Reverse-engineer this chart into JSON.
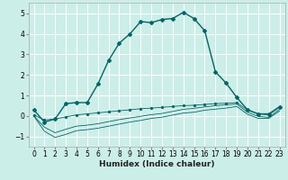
{
  "xlabel": "Humidex (Indice chaleur)",
  "bg_color": "#cceee8",
  "grid_color": "#ffffff",
  "line_color": "#006666",
  "xlim": [
    -0.5,
    23.5
  ],
  "ylim": [
    -1.5,
    5.5
  ],
  "xticks": [
    0,
    1,
    2,
    3,
    4,
    5,
    6,
    7,
    8,
    9,
    10,
    11,
    12,
    13,
    14,
    15,
    16,
    17,
    18,
    19,
    20,
    21,
    22,
    23
  ],
  "yticks": [
    -1,
    0,
    1,
    2,
    3,
    4,
    5
  ],
  "main_line_x": [
    0,
    1,
    2,
    3,
    4,
    5,
    6,
    7,
    8,
    9,
    10,
    11,
    12,
    13,
    14,
    15,
    16,
    17,
    18,
    19,
    20,
    21,
    22,
    23
  ],
  "main_line_y": [
    0.3,
    -0.3,
    -0.15,
    0.6,
    0.65,
    0.65,
    1.55,
    2.7,
    3.55,
    4.0,
    4.6,
    4.55,
    4.7,
    4.75,
    5.05,
    4.75,
    4.15,
    2.15,
    1.6,
    0.9,
    0.3,
    0.1,
    0.1,
    0.45
  ],
  "line2_x": [
    0,
    1,
    2,
    3,
    4,
    5,
    6,
    7,
    8,
    9,
    10,
    11,
    12,
    13,
    14,
    15,
    16,
    17,
    18,
    19,
    20,
    21,
    22,
    23
  ],
  "line2_y": [
    0.05,
    -0.2,
    -0.15,
    -0.05,
    0.05,
    0.1,
    0.15,
    0.2,
    0.25,
    0.3,
    0.35,
    0.38,
    0.42,
    0.46,
    0.5,
    0.52,
    0.56,
    0.6,
    0.62,
    0.65,
    0.28,
    0.1,
    0.05,
    0.42
  ],
  "line3_x": [
    0,
    1,
    2,
    3,
    4,
    5,
    6,
    7,
    8,
    9,
    10,
    11,
    12,
    13,
    14,
    15,
    16,
    17,
    18,
    19,
    20,
    21,
    22,
    23
  ],
  "line3_y": [
    0.0,
    -0.55,
    -0.82,
    -0.65,
    -0.5,
    -0.45,
    -0.38,
    -0.28,
    -0.18,
    -0.1,
    -0.02,
    0.06,
    0.12,
    0.22,
    0.32,
    0.37,
    0.44,
    0.5,
    0.54,
    0.58,
    0.18,
    -0.02,
    -0.07,
    0.32
  ],
  "line4_x": [
    0,
    1,
    2,
    3,
    4,
    5,
    6,
    7,
    8,
    9,
    10,
    11,
    12,
    13,
    14,
    15,
    16,
    17,
    18,
    19,
    20,
    21,
    22,
    23
  ],
  "line4_y": [
    0.0,
    -0.75,
    -1.05,
    -0.9,
    -0.72,
    -0.67,
    -0.6,
    -0.5,
    -0.4,
    -0.3,
    -0.22,
    -0.12,
    -0.06,
    0.04,
    0.14,
    0.18,
    0.28,
    0.33,
    0.38,
    0.46,
    0.08,
    -0.12,
    -0.12,
    0.24
  ]
}
